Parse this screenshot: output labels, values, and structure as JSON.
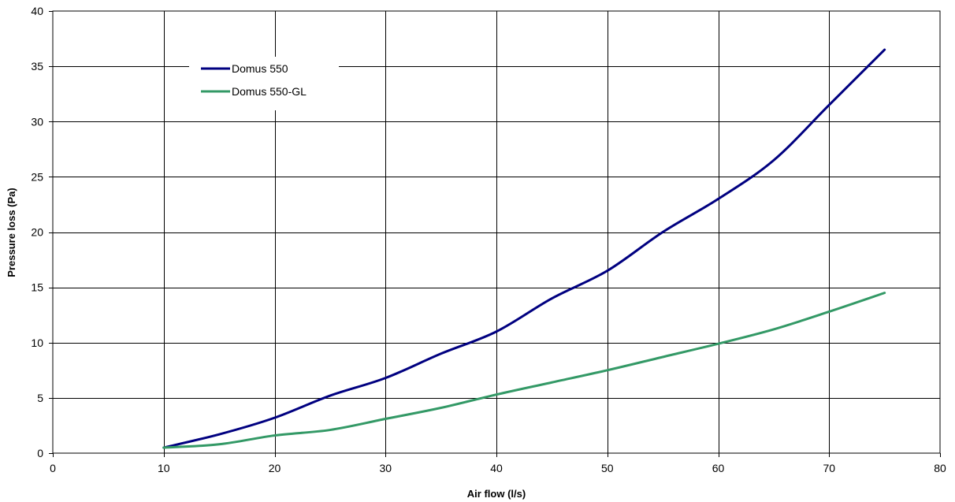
{
  "chart_data": {
    "type": "line",
    "title": "",
    "xlabel": "Air flow (l/s)",
    "ylabel": "Pressure loss (Pa)",
    "xlim": [
      0,
      80
    ],
    "ylim": [
      0,
      40
    ],
    "x_ticks": [
      0,
      10,
      20,
      30,
      40,
      50,
      60,
      70,
      80
    ],
    "y_ticks": [
      0,
      5,
      10,
      15,
      20,
      25,
      30,
      35,
      40
    ],
    "grid": true,
    "legend_position": "top-left",
    "series": [
      {
        "name": "Domus 550",
        "color": "#000080",
        "points": [
          [
            10,
            0.5
          ],
          [
            15,
            1.7
          ],
          [
            20,
            3.2
          ],
          [
            25,
            5.2
          ],
          [
            30,
            6.8
          ],
          [
            35,
            9.0
          ],
          [
            40,
            11.0
          ],
          [
            45,
            14.0
          ],
          [
            50,
            16.5
          ],
          [
            55,
            20.0
          ],
          [
            60,
            23.0
          ],
          [
            65,
            26.5
          ],
          [
            70,
            31.5
          ],
          [
            75,
            36.5
          ]
        ]
      },
      {
        "name": "Domus 550-GL",
        "color": "#339966",
        "points": [
          [
            10,
            0.5
          ],
          [
            15,
            0.8
          ],
          [
            20,
            1.6
          ],
          [
            25,
            2.1
          ],
          [
            30,
            3.1
          ],
          [
            35,
            4.1
          ],
          [
            40,
            5.3
          ],
          [
            45,
            6.4
          ],
          [
            50,
            7.5
          ],
          [
            55,
            8.7
          ],
          [
            60,
            9.9
          ],
          [
            65,
            11.2
          ],
          [
            70,
            12.8
          ],
          [
            75,
            14.5
          ]
        ]
      }
    ]
  }
}
